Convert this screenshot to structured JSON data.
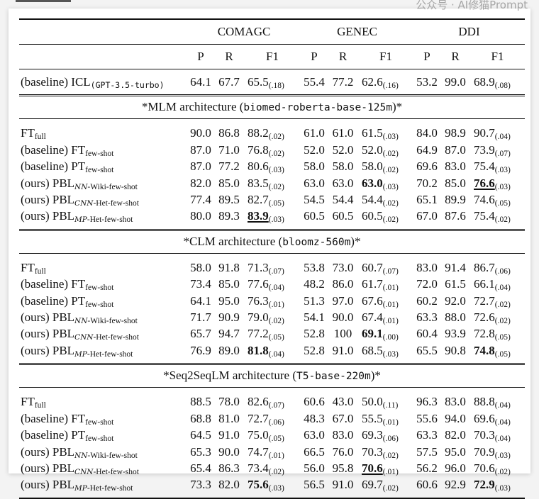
{
  "datasets": [
    "COMAGC",
    "GENEC",
    "DDI"
  ],
  "metrics": [
    "P",
    "R",
    "F1"
  ],
  "icl_row": {
    "prefix": "(baseline)",
    "method": "ICL",
    "sub": "(GPT-3.5-turbo)",
    "cells": [
      {
        "P": "64.1",
        "R": "67.7",
        "F1": "65.5",
        "sd": "(.18)"
      },
      {
        "P": "55.4",
        "R": "77.2",
        "F1": "62.6",
        "sd": "(.16)"
      },
      {
        "P": "53.2",
        "R": "99.0",
        "F1": "68.9",
        "sd": "(.08)"
      }
    ]
  },
  "sections": [
    {
      "title_prefix": "*MLM architecture (",
      "title_code": "biomed-roberta-base-125m",
      "title_suffix": ")*",
      "rows": [
        {
          "prefix": "",
          "method": "FT",
          "sub_cal": "",
          "sub": "full",
          "cells": [
            {
              "P": "90.0",
              "R": "86.8",
              "F1": "88.2",
              "sd": "(.02)"
            },
            {
              "P": "61.0",
              "R": "61.0",
              "F1": "61.5",
              "sd": "(.03)"
            },
            {
              "P": "84.0",
              "R": "98.9",
              "F1": "90.7",
              "sd": "(.04)"
            }
          ]
        },
        {
          "prefix": "(baseline)",
          "method": "FT",
          "sub_cal": "",
          "sub": "few-shot",
          "cells": [
            {
              "P": "87.0",
              "R": "71.0",
              "F1": "76.8",
              "sd": "(.02)"
            },
            {
              "P": "52.0",
              "R": "52.0",
              "F1": "52.0",
              "sd": "(.02)"
            },
            {
              "P": "64.9",
              "R": "87.0",
              "F1": "73.9",
              "sd": "(.07)"
            }
          ]
        },
        {
          "prefix": "(baseline)",
          "method": "PT",
          "sub_cal": "",
          "sub": "few-shot",
          "cells": [
            {
              "P": "87.0",
              "R": "77.2",
              "F1": "80.6",
              "sd": "(.03)"
            },
            {
              "P": "58.0",
              "R": "58.0",
              "F1": "58.0",
              "sd": "(.02)"
            },
            {
              "P": "69.6",
              "R": "83.0",
              "F1": "75.4",
              "sd": "(.03)"
            }
          ]
        },
        {
          "prefix": "(ours)",
          "method": "PBL",
          "sub_cal": "NN",
          "sub": "-Wiki-few-shot",
          "cells": [
            {
              "P": "82.0",
              "R": "85.0",
              "F1": "83.5",
              "sd": "(.02)"
            },
            {
              "P": "63.0",
              "R": "63.0",
              "F1": "63.0",
              "sd": "(.03)",
              "style": "bold"
            },
            {
              "P": "70.2",
              "R": "85.0",
              "F1": "76.6",
              "sd": "(.03)",
              "style": "bold-underline"
            }
          ]
        },
        {
          "prefix": "(ours)",
          "method": "PBL",
          "sub_cal": "CNN",
          "sub": "-Het-few-shot",
          "cells": [
            {
              "P": "77.4",
              "R": "89.5",
              "F1": "82.7",
              "sd": "(.05)"
            },
            {
              "P": "54.5",
              "R": "54.4",
              "F1": "54.4",
              "sd": "(.02)"
            },
            {
              "P": "65.1",
              "R": "89.9",
              "F1": "74.6",
              "sd": "(.05)"
            }
          ]
        },
        {
          "prefix": "(ours)",
          "method": "PBL",
          "sub_cal": "MP",
          "sub": "-Het-few-shot",
          "cells": [
            {
              "P": "80.0",
              "R": "89.3",
              "F1": "83.9",
              "sd": "(.03)",
              "style": "bold-underline"
            },
            {
              "P": "60.5",
              "R": "60.5",
              "F1": "60.5",
              "sd": "(.02)"
            },
            {
              "P": "67.0",
              "R": "87.6",
              "F1": "75.4",
              "sd": "(.02)"
            }
          ]
        }
      ]
    },
    {
      "title_prefix": "*CLM architecture (",
      "title_code": "bloomz-560m",
      "title_suffix": ")*",
      "rows": [
        {
          "prefix": "",
          "method": "FT",
          "sub_cal": "",
          "sub": "full",
          "cells": [
            {
              "P": "58.0",
              "R": "91.8",
              "F1": "71.3",
              "sd": "(.07)"
            },
            {
              "P": "53.8",
              "R": "73.0",
              "F1": "60.7",
              "sd": "(.07)"
            },
            {
              "P": "83.0",
              "R": "91.4",
              "F1": "86.7",
              "sd": "(.06)"
            }
          ]
        },
        {
          "prefix": "(baseline)",
          "method": "FT",
          "sub_cal": "",
          "sub": "few-shot",
          "cells": [
            {
              "P": "73.4",
              "R": "85.0",
              "F1": "77.6",
              "sd": "(.04)"
            },
            {
              "P": "48.2",
              "R": "86.0",
              "F1": "61.7",
              "sd": "(.01)"
            },
            {
              "P": "72.0",
              "R": "61.5",
              "F1": "66.1",
              "sd": "(.04)"
            }
          ]
        },
        {
          "prefix": "(baseline)",
          "method": "PT",
          "sub_cal": "",
          "sub": "few-shot",
          "cells": [
            {
              "P": "64.1",
              "R": "95.0",
              "F1": "76.3",
              "sd": "(.01)"
            },
            {
              "P": "51.3",
              "R": "97.0",
              "F1": "67.6",
              "sd": "(.01)"
            },
            {
              "P": "60.2",
              "R": "92.0",
              "F1": "72.7",
              "sd": "(.02)"
            }
          ]
        },
        {
          "prefix": "(ours)",
          "method": "PBL",
          "sub_cal": "NN",
          "sub": "-Wiki-few-shot",
          "cells": [
            {
              "P": "71.7",
              "R": "90.9",
              "F1": "79.0",
              "sd": "(.02)"
            },
            {
              "P": "54.1",
              "R": "90.0",
              "F1": "67.4",
              "sd": "(.01)"
            },
            {
              "P": "63.3",
              "R": "88.0",
              "F1": "72.6",
              "sd": "(.02)"
            }
          ]
        },
        {
          "prefix": "(ours)",
          "method": "PBL",
          "sub_cal": "CNN",
          "sub": "-Het-few-shot",
          "cells": [
            {
              "P": "65.7",
              "R": "94.7",
              "F1": "77.2",
              "sd": "(.05)"
            },
            {
              "P": "52.8",
              "R": "100",
              "F1": "69.1",
              "sd": "(.00)",
              "style": "bold"
            },
            {
              "P": "60.4",
              "R": "93.9",
              "F1": "72.8",
              "sd": "(.05)"
            }
          ]
        },
        {
          "prefix": "(ours)",
          "method": "PBL",
          "sub_cal": "MP",
          "sub": "-Het-few-shot",
          "cells": [
            {
              "P": "76.9",
              "R": "89.0",
              "F1": "81.8",
              "sd": "(.04)",
              "style": "bold"
            },
            {
              "P": "52.8",
              "R": "91.0",
              "F1": "68.5",
              "sd": "(.03)"
            },
            {
              "P": "65.5",
              "R": "90.8",
              "F1": "74.8",
              "sd": "(.05)",
              "style": "bold"
            }
          ]
        }
      ]
    },
    {
      "title_prefix": "*Seq2SeqLM architecture (",
      "title_code": "T5-base-220m",
      "title_suffix": ")*",
      "rows": [
        {
          "prefix": "",
          "method": "FT",
          "sub_cal": "",
          "sub": "full",
          "cells": [
            {
              "P": "88.5",
              "R": "78.0",
              "F1": "82.6",
              "sd": "(.07)"
            },
            {
              "P": "60.6",
              "R": "43.0",
              "F1": "50.0",
              "sd": "(.11)"
            },
            {
              "P": "96.3",
              "R": "83.0",
              "F1": "88.8",
              "sd": "(.04)"
            }
          ]
        },
        {
          "prefix": "(baseline)",
          "method": "FT",
          "sub_cal": "",
          "sub": "few-shot",
          "cells": [
            {
              "P": "68.8",
              "R": "81.0",
              "F1": "72.7",
              "sd": "(.06)"
            },
            {
              "P": "48.3",
              "R": "67.0",
              "F1": "55.5",
              "sd": "(.01)"
            },
            {
              "P": "55.6",
              "R": "94.0",
              "F1": "69.6",
              "sd": "(.04)"
            }
          ]
        },
        {
          "prefix": "(baseline)",
          "method": "PT",
          "sub_cal": "",
          "sub": "few-shot",
          "cells": [
            {
              "P": "64.5",
              "R": "91.0",
              "F1": "75.0",
              "sd": "(.05)"
            },
            {
              "P": "63.0",
              "R": "83.0",
              "F1": "69.3",
              "sd": "(.06)"
            },
            {
              "P": "63.3",
              "R": "82.0",
              "F1": "70.3",
              "sd": "(.04)"
            }
          ]
        },
        {
          "prefix": "(ours)",
          "method": "PBL",
          "sub_cal": "NN",
          "sub": "-Wiki-few-shot",
          "cells": [
            {
              "P": "65.3",
              "R": "90.0",
              "F1": "74.7",
              "sd": "(.01)"
            },
            {
              "P": "66.5",
              "R": "76.0",
              "F1": "70.3",
              "sd": "(.02)"
            },
            {
              "P": "57.5",
              "R": "95.0",
              "F1": "70.9",
              "sd": "(.03)"
            }
          ]
        },
        {
          "prefix": "(ours)",
          "method": "PBL",
          "sub_cal": "CNN",
          "sub": "-Het-few-shot",
          "cells": [
            {
              "P": "65.4",
              "R": "86.3",
              "F1": "73.4",
              "sd": "(.02)"
            },
            {
              "P": "56.0",
              "R": "95.8",
              "F1": "70.6",
              "sd": "(.01)",
              "style": "bold-underline"
            },
            {
              "P": "56.2",
              "R": "96.0",
              "F1": "70.6",
              "sd": "(.02)"
            }
          ]
        },
        {
          "prefix": "(ours)",
          "method": "PBL",
          "sub_cal": "MP",
          "sub": "-Het-few-shot",
          "cells": [
            {
              "P": "73.3",
              "R": "82.0",
              "F1": "75.6",
              "sd": "(.03)",
              "style": "bold"
            },
            {
              "P": "56.5",
              "R": "91.0",
              "F1": "69.7",
              "sd": "(.02)"
            },
            {
              "P": "60.6",
              "R": "92.9",
              "F1": "72.9",
              "sd": "(.03)",
              "style": "bold"
            }
          ]
        }
      ]
    }
  ],
  "watermark": "公众号 · AI修猫Prompt"
}
